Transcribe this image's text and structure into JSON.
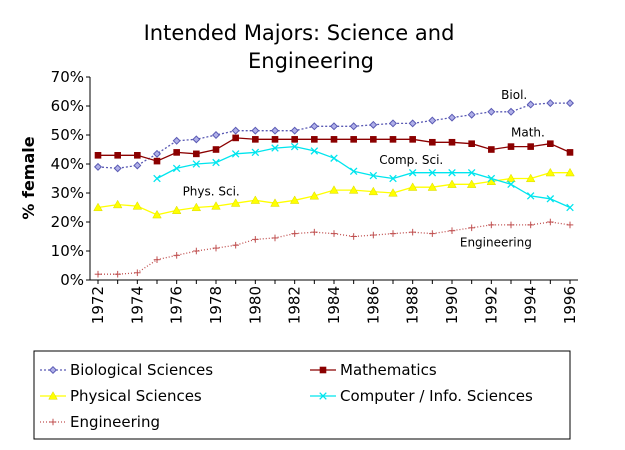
{
  "chart_data": {
    "type": "line",
    "title_lines": [
      "Intended Majors: Science and",
      "Engineering"
    ],
    "ylabel": "% female",
    "xlabel": "",
    "x": [
      1972,
      1973,
      1974,
      1975,
      1976,
      1977,
      1978,
      1979,
      1980,
      1981,
      1982,
      1983,
      1984,
      1985,
      1986,
      1987,
      1988,
      1989,
      1990,
      1991,
      1992,
      1993,
      1994,
      1995,
      1996
    ],
    "xticks": [
      1972,
      1974,
      1976,
      1978,
      1980,
      1982,
      1984,
      1986,
      1988,
      1990,
      1992,
      1994,
      1996
    ],
    "yticks": [
      0,
      10,
      20,
      30,
      40,
      50,
      60,
      70
    ],
    "ytick_labels": [
      "0%",
      "10%",
      "20%",
      "30%",
      "40%",
      "50%",
      "60%",
      "70%"
    ],
    "ylim": [
      0,
      70
    ],
    "grid": false,
    "legend_position": "bottom",
    "series": [
      {
        "key": "bio",
        "name": "Biological Sciences",
        "color": "#5a5ab4",
        "marker": "diamond",
        "dash": "2,2",
        "values": [
          39,
          38.5,
          39.5,
          43.5,
          48,
          48.5,
          50,
          51.5,
          51.5,
          51.5,
          51.5,
          53,
          53,
          53,
          53.5,
          54,
          54,
          55,
          56,
          57,
          58,
          58,
          60.5,
          61,
          61
        ]
      },
      {
        "key": "math",
        "name": "Mathematics",
        "color": "#8b0000",
        "marker": "square",
        "dash": "",
        "values": [
          43,
          43,
          43,
          41,
          44,
          43.5,
          45,
          49,
          48.5,
          48.5,
          48.5,
          48.5,
          48.5,
          48.5,
          48.5,
          48.5,
          48.5,
          47.5,
          47.5,
          47,
          45,
          46,
          46,
          47,
          44
        ]
      },
      {
        "key": "phys",
        "name": "Physical Sciences",
        "color": "#ffff00",
        "marker": "triangle",
        "dash": "",
        "values": [
          25,
          26,
          25.5,
          22.5,
          24,
          25,
          25.5,
          26.5,
          27.5,
          26.5,
          27.5,
          29,
          31,
          31,
          30.5,
          30,
          32,
          32,
          33,
          33,
          34,
          35,
          35,
          37,
          37
        ]
      },
      {
        "key": "comp",
        "name": "Computer / Info. Sciences",
        "color": "#00e5ee",
        "marker": "x",
        "dash": "",
        "values": [
          null,
          null,
          null,
          35,
          38.5,
          40,
          40.5,
          43.5,
          44,
          45.5,
          46,
          44.5,
          42,
          37.5,
          36,
          35,
          37,
          37,
          37,
          37,
          35,
          33,
          29,
          28,
          25
        ]
      },
      {
        "key": "eng",
        "name": "Engineering",
        "color": "#c05050",
        "marker": "plus",
        "dash": "1,2",
        "values": [
          2,
          2,
          2.5,
          7,
          8.5,
          10,
          11,
          12,
          14,
          14.5,
          16,
          16.5,
          16,
          15,
          15.5,
          16,
          16.5,
          16,
          17,
          18,
          19,
          19,
          19,
          20,
          19
        ]
      }
    ],
    "annotations": [
      {
        "text": "Biol.",
        "series": "bio",
        "x": 1992.5,
        "y": 62.5
      },
      {
        "text": "Math.",
        "series": "math",
        "x": 1993,
        "y": 49.5
      },
      {
        "text": "Comp. Sci.",
        "series": "comp",
        "x": 1986.3,
        "y": 40
      },
      {
        "text": "Phys. Sci.",
        "series": "phys",
        "x": 1976.3,
        "y": 29.2
      },
      {
        "text": "Engineering",
        "series": "eng",
        "x": 1990.4,
        "y": 11.5
      }
    ]
  }
}
